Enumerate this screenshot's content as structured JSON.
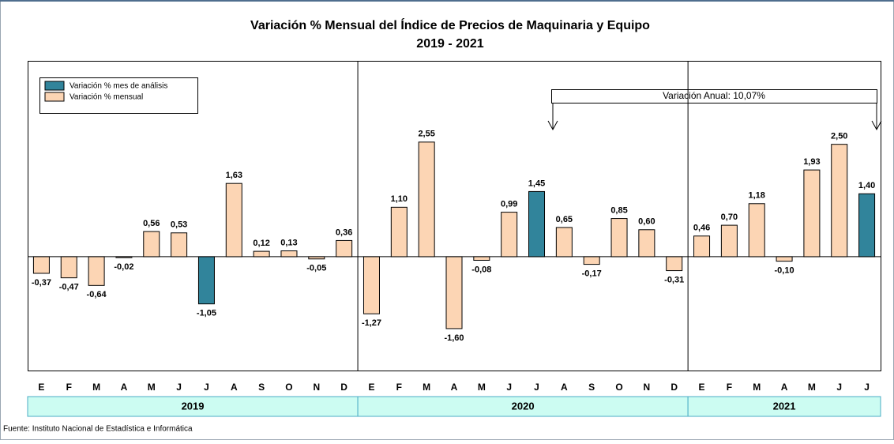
{
  "chart_data": {
    "type": "bar",
    "title": "Variación % Mensual del Índice de Precios de Maquinaria y Equipo",
    "subtitle": "2019 - 2021",
    "annotation": "Variación Anual: 10,07%",
    "source": "Fuente: Instituto Nacional de Estadística e Informática",
    "groups": [
      {
        "label": "2019",
        "categories": [
          "E",
          "F",
          "M",
          "A",
          "M",
          "J",
          "J",
          "A",
          "S",
          "O",
          "N",
          "D"
        ]
      },
      {
        "label": "2020",
        "categories": [
          "E",
          "F",
          "M",
          "A",
          "M",
          "J",
          "J",
          "A",
          "S",
          "O",
          "N",
          "D"
        ]
      },
      {
        "label": "2021",
        "categories": [
          "E",
          "F",
          "M",
          "A",
          "M",
          "J",
          "J"
        ]
      }
    ],
    "series": [
      {
        "name": "Variación % mes de análisis",
        "color": "#31849b",
        "values": [
          null,
          null,
          null,
          null,
          null,
          null,
          -1.05,
          null,
          null,
          null,
          null,
          null,
          null,
          null,
          null,
          null,
          null,
          null,
          1.45,
          null,
          null,
          null,
          null,
          null,
          null,
          null,
          null,
          null,
          null,
          null,
          1.4
        ],
        "value_labels": [
          null,
          null,
          null,
          null,
          null,
          null,
          "-1,05",
          null,
          null,
          null,
          null,
          null,
          null,
          null,
          null,
          null,
          null,
          null,
          "1,45",
          null,
          null,
          null,
          null,
          null,
          null,
          null,
          null,
          null,
          null,
          null,
          "1,40"
        ]
      },
      {
        "name": "Variación % mensual",
        "color": "#fcd5b4",
        "values": [
          -0.37,
          -0.47,
          -0.64,
          -0.02,
          0.56,
          0.53,
          null,
          1.63,
          0.12,
          0.13,
          -0.05,
          0.36,
          -1.27,
          1.1,
          2.55,
          -1.6,
          -0.08,
          0.99,
          null,
          0.65,
          -0.17,
          0.85,
          0.6,
          -0.31,
          0.46,
          0.7,
          1.18,
          -0.1,
          1.93,
          2.5,
          null
        ],
        "value_labels": [
          "-0,37",
          "-0,47",
          "-0,64",
          "-0,02",
          "0,56",
          "0,53",
          null,
          "1,63",
          "0,12",
          "0,13",
          "-0,05",
          "0,36",
          "-1,27",
          "1,10",
          "2,55",
          "-1,60",
          "-0,08",
          "0,99",
          null,
          "0,65",
          "-0,17",
          "0,85",
          "0,60",
          "-0,31",
          "0,46",
          "0,70",
          "1,18",
          "-0,10",
          "1,93",
          "2,50",
          null
        ]
      }
    ],
    "ylim": [
      -2.55,
      4.34
    ]
  }
}
